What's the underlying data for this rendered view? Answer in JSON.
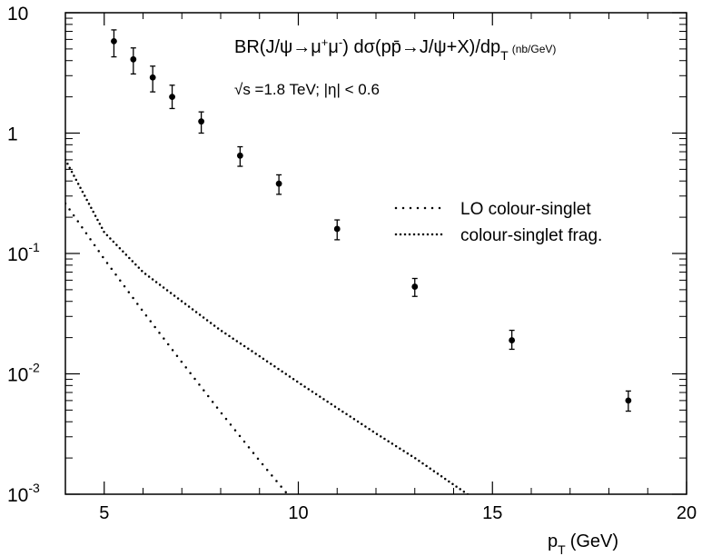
{
  "chart_data": {
    "type": "scatter",
    "title": "BR(J/ψ→μ+μ-) dσ(pp̄→J/ψ+X)/dpT (nb/GeV)",
    "subtitle": "√s =1.8 TeV; |η| < 0.6",
    "xlabel": "pT (GeV)",
    "ylabel": "",
    "xlim": [
      4,
      20
    ],
    "ylim": [
      0.001,
      10
    ],
    "yscale": "log",
    "grid": false,
    "legend_position": "right",
    "x_ticks": [
      5,
      10,
      15,
      20
    ],
    "y_ticks": [
      {
        "value": 10,
        "base": "10",
        "exp": ""
      },
      {
        "value": 1,
        "base": "1",
        "exp": ""
      },
      {
        "value": 0.1,
        "base": "10",
        "exp": "-1"
      },
      {
        "value": 0.01,
        "base": "10",
        "exp": "-2"
      },
      {
        "value": 0.001,
        "base": "10",
        "exp": "-3"
      }
    ],
    "title_parts": {
      "t1": "BR(J/ψ→μ",
      "sup1": "+",
      "t2": "μ",
      "sup2": "-",
      "t3": ") dσ(pp̄→J/ψ+X)/dp",
      "sub": "T",
      "units": "(nb/GeV)"
    },
    "xlabel_parts": {
      "main": "p",
      "sub": "T",
      "units": "(GeV)"
    },
    "data_points": {
      "name": "data",
      "x": [
        5.25,
        5.75,
        6.25,
        6.75,
        7.5,
        8.5,
        9.5,
        11.0,
        13.0,
        15.5,
        18.5
      ],
      "y": [
        5.8,
        4.1,
        2.9,
        2.0,
        1.25,
        0.65,
        0.38,
        0.16,
        0.053,
        0.019,
        0.006
      ],
      "y_low": [
        4.3,
        3.1,
        2.2,
        1.6,
        1.0,
        0.53,
        0.31,
        0.13,
        0.044,
        0.016,
        0.0049
      ],
      "y_high": [
        7.2,
        5.1,
        3.6,
        2.5,
        1.5,
        0.77,
        0.45,
        0.19,
        0.062,
        0.023,
        0.0072
      ]
    },
    "series": [
      {
        "name": "LO colour-singlet",
        "x": [
          4.0,
          5.0,
          6.0,
          7.0,
          8.0,
          9.0,
          10.0
        ],
        "y": [
          0.26,
          0.09,
          0.033,
          0.0125,
          0.0048,
          0.0019,
          0.00078
        ]
      },
      {
        "name": "colour-singlet frag.",
        "x": [
          4.0,
          5.0,
          6.0,
          7.0,
          8.0,
          9.0,
          10.0,
          11.0,
          12.0,
          13.0,
          14.0,
          14.4
        ],
        "y": [
          0.6,
          0.15,
          0.07,
          0.04,
          0.023,
          0.014,
          0.0085,
          0.0052,
          0.0032,
          0.002,
          0.0012,
          0.00098
        ]
      }
    ]
  }
}
